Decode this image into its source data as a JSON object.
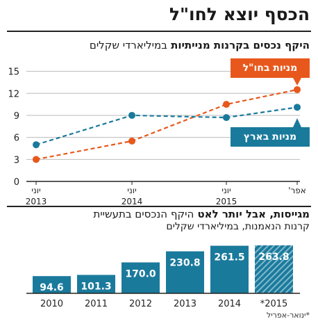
{
  "title": "הכסף יוצא לחו\"ל",
  "line_subtitle": {
    "bold": "היקף נכסים בקרנות מנייתיות",
    "light": "במיליארדי שקלים"
  },
  "bar_subtitle": {
    "bold": "מגייסות, אבל יותר לאט",
    "light": "היקף הנכסים בתעשיית",
    "line2": "קרנות הנאמנות, במיליארדי שקלים"
  },
  "footnote": "*ינואר-אפריל",
  "colors": {
    "abroad": "#e8581c",
    "israel": "#1a7a9c",
    "grid": "#bbbbbb",
    "axis": "#222222"
  },
  "chart_data": [
    {
      "type": "line",
      "x": [
        "יוני 2013",
        "יוני 2014",
        "יוני 2015",
        "אפריל"
      ],
      "tick_labels": [
        {
          "month": "יוני",
          "year": "2013"
        },
        {
          "month": "יוני",
          "year": "2014"
        },
        {
          "month": "יוני",
          "year": "2015"
        },
        {
          "month": "אפר'",
          "year": ""
        }
      ],
      "yticks": [
        "0",
        "3",
        "6",
        "9",
        "12",
        "15"
      ],
      "ylim": [
        0,
        16
      ],
      "grid": true,
      "series": [
        {
          "name": "מניות בחו\"ל",
          "key": "abroad",
          "values": [
            3.0,
            5.5,
            10.5,
            12.5
          ]
        },
        {
          "name": "מניות בארץ",
          "key": "israel",
          "values": [
            5.0,
            9.0,
            8.7,
            10.1
          ]
        }
      ]
    },
    {
      "type": "bar",
      "categories": [
        "2010",
        "2011",
        "2012",
        "2013",
        "2014",
        "*2015"
      ],
      "values": [
        94.6,
        101.3,
        170.0,
        230.8,
        261.5,
        263.8
      ],
      "value_labels": [
        "94.6",
        "101.3",
        "170.0",
        "230.8",
        "261.5",
        "263.8"
      ],
      "hatched": [
        false,
        false,
        false,
        false,
        false,
        true
      ]
    }
  ]
}
